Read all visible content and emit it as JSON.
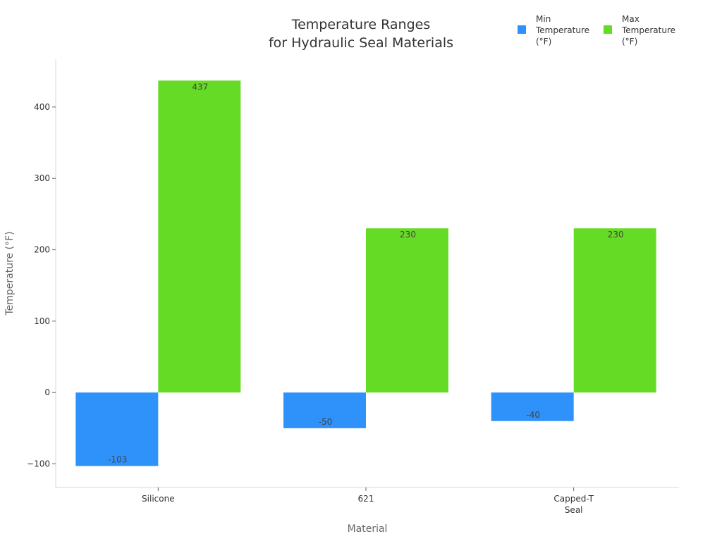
{
  "chart_data": {
    "type": "bar",
    "title_line1": "Temperature Ranges",
    "title_line2": "for Hydraulic Seal Materials",
    "xlabel": "Material",
    "ylabel": "Temperature (°F)",
    "categories": [
      [
        "Silicone"
      ],
      [
        "621"
      ],
      [
        "Capped-T",
        "Seal"
      ]
    ],
    "series": [
      {
        "name_lines": [
          "Min",
          "Temperature",
          "(°F)"
        ],
        "color": "#2f92fa",
        "values": [
          -103,
          -50,
          -40
        ],
        "labels": [
          "-103",
          "-50",
          "-40"
        ]
      },
      {
        "name_lines": [
          "Max",
          "Temperature",
          "(°F)"
        ],
        "color": "#66db26",
        "values": [
          437,
          230,
          230
        ],
        "labels": [
          "437",
          "230",
          "230"
        ]
      }
    ],
    "ylim": [
      -133,
      467
    ],
    "yticks": [
      -100,
      0,
      100,
      200,
      300,
      400
    ],
    "ytick_labels": [
      "−100",
      "0",
      "100",
      "200",
      "300",
      "400"
    ],
    "grid": false,
    "legend_position": "top-right"
  }
}
